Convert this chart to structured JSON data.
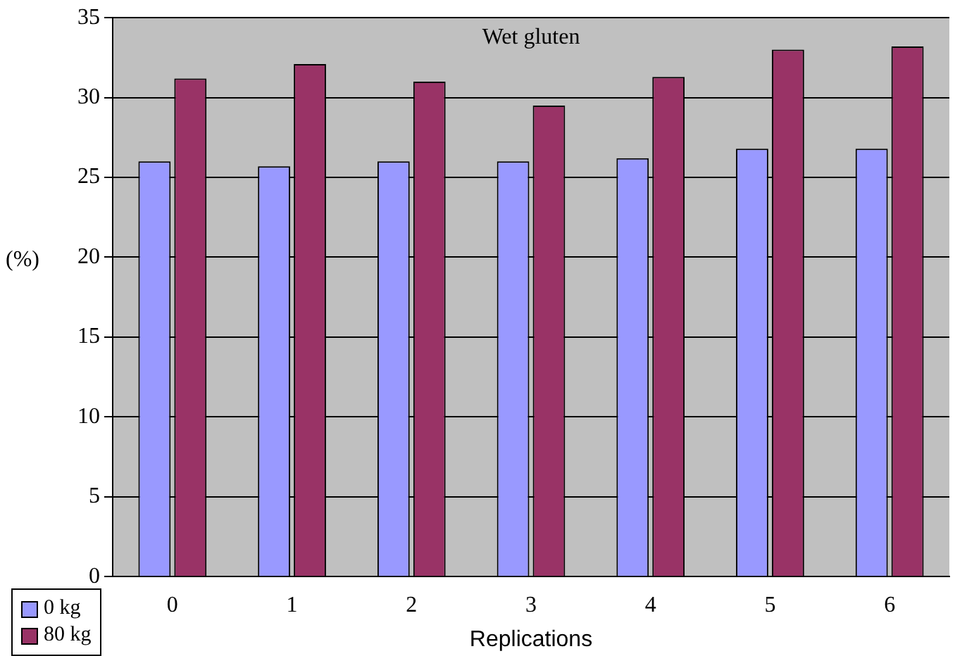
{
  "chart_data": {
    "type": "bar",
    "title": "Wet gluten",
    "xlabel": "Replications",
    "ylabel": "(%)",
    "categories": [
      "0",
      "1",
      "2",
      "3",
      "4",
      "5",
      "6"
    ],
    "series": [
      {
        "name": "0 kg",
        "color": "#9999ff",
        "values": [
          26,
          25.7,
          26,
          26,
          26.2,
          26.8,
          26.8
        ]
      },
      {
        "name": "80 kg",
        "color": "#993366",
        "values": [
          31.2,
          32.1,
          31,
          29.5,
          31.3,
          33,
          33.2
        ]
      }
    ],
    "ylim": [
      0,
      35
    ],
    "yticks": [
      0,
      5,
      10,
      15,
      20,
      25,
      30,
      35
    ],
    "grid": "y",
    "legend": "bottom left"
  }
}
